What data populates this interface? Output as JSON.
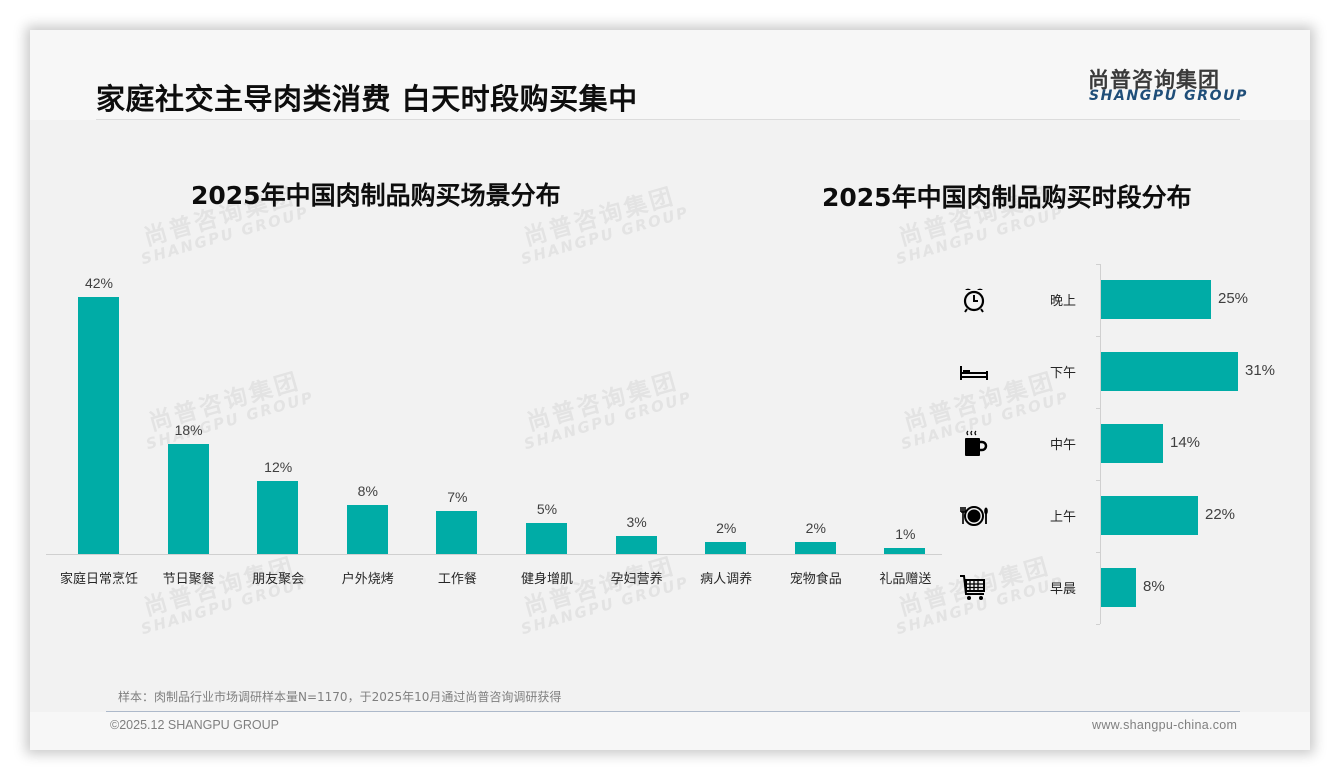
{
  "header": {
    "title": "家庭社交主导肉类消费 白天时段购买集中",
    "logo_cn": "尚普咨询集团",
    "logo_en": "SHANGPU GROUP"
  },
  "watermark": {
    "cn": "尚普咨询集团",
    "en": "SHANGPU GROUP"
  },
  "colors": {
    "bar": "#00aca6",
    "logo_en": "#1f4e79",
    "title": "#0d0d0d"
  },
  "chart_data": [
    {
      "type": "bar",
      "title": "2025年中国肉制品购买场景分布",
      "xlabel": "",
      "ylabel": "",
      "categories": [
        "家庭日常烹饪",
        "节日聚餐",
        "朋友聚会",
        "户外烧烤",
        "工作餐",
        "健身增肌",
        "孕妇营养",
        "病人调养",
        "宠物食品",
        "礼品赠送"
      ],
      "values": [
        42,
        18,
        12,
        8,
        7,
        5,
        3,
        2,
        2,
        1
      ],
      "value_labels": [
        "42%",
        "18%",
        "12%",
        "8%",
        "7%",
        "5%",
        "3%",
        "2%",
        "2%",
        "1%"
      ],
      "unit": "%",
      "grid": false,
      "legend": null,
      "ylim": [
        0,
        42
      ]
    },
    {
      "type": "bar",
      "orientation": "horizontal",
      "title": "2025年中国肉制品购买时段分布",
      "xlabel": "",
      "ylabel": "",
      "categories": [
        "晚上",
        "下午",
        "中午",
        "上午",
        "早晨"
      ],
      "values": [
        25,
        31,
        14,
        22,
        8
      ],
      "value_labels": [
        "25%",
        "31%",
        "14%",
        "22%",
        "8%"
      ],
      "icons": [
        "alarm-clock-icon",
        "bed-icon",
        "hot-mug-icon",
        "plate-cutlery-icon",
        "shopping-cart-icon"
      ],
      "unit": "%",
      "grid": false,
      "legend": null,
      "xlim": [
        0,
        31
      ]
    }
  ],
  "footer": {
    "sample_note": "样本：肉制品行业市场调研样本量N=1170，于2025年10月通过尚普咨询调研获得",
    "copyright": "©2025.12 SHANGPU GROUP",
    "website": "www.shangpu-china.com"
  }
}
